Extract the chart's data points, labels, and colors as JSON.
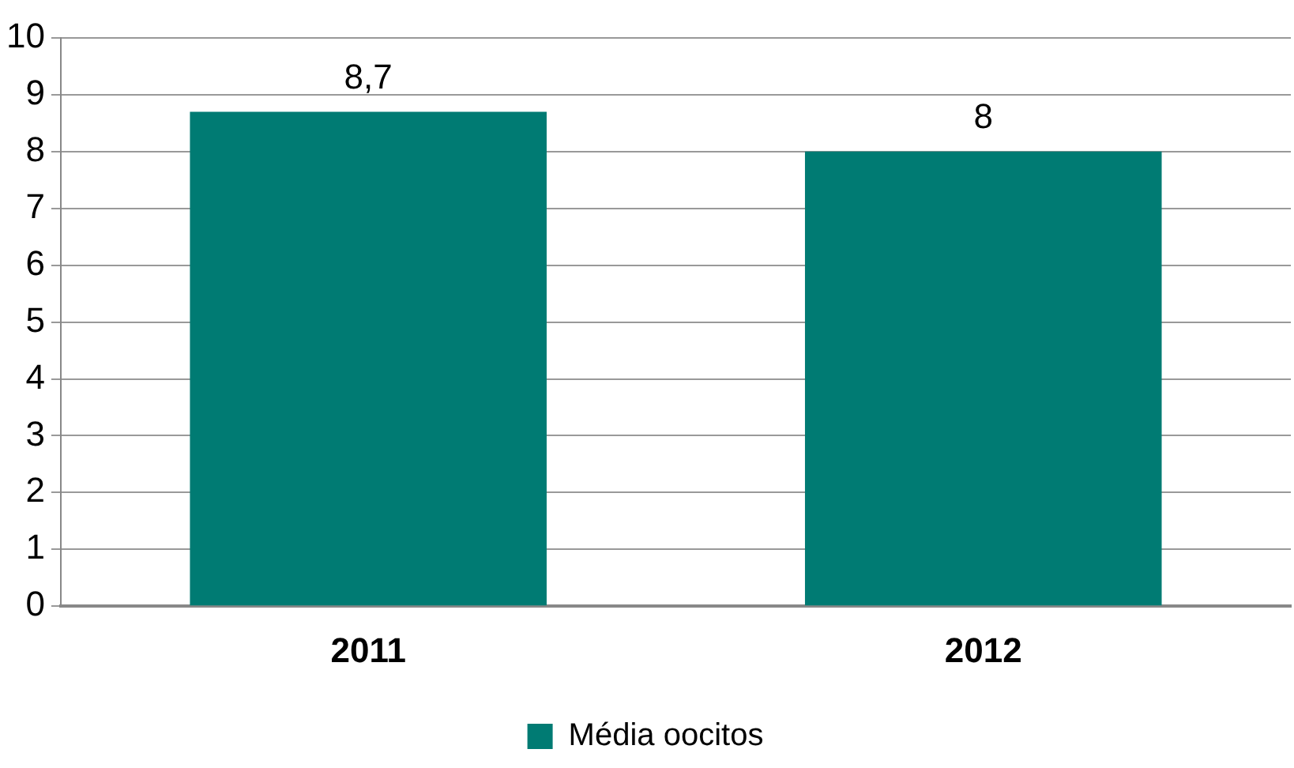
{
  "chart_data": {
    "type": "bar",
    "categories": [
      "2011",
      "2012"
    ],
    "series": [
      {
        "name": "Média oocitos",
        "color": "#007b73",
        "values": [
          8.7,
          8
        ],
        "value_labels": [
          "8,7",
          "8"
        ]
      }
    ],
    "ylim": [
      0,
      10
    ],
    "yticks": [
      0,
      1,
      2,
      3,
      4,
      5,
      6,
      7,
      8,
      9,
      10
    ],
    "grid": "y",
    "legend": "bottom"
  }
}
